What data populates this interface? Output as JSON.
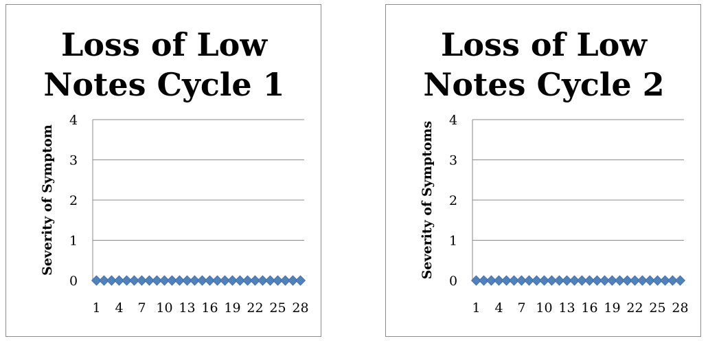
{
  "chart_data": [
    {
      "type": "line",
      "title_lines": [
        "Loss of Low",
        "Notes Cycle 1"
      ],
      "xlabel": "",
      "ylabel": "Severity of Symptom",
      "ylim": [
        0,
        4
      ],
      "yticks": [
        "0",
        "1",
        "2",
        "3",
        "4"
      ],
      "x_tick_labels": [
        "1",
        "4",
        "7",
        "10",
        "13",
        "16",
        "19",
        "22",
        "25",
        "28"
      ],
      "x": [
        1,
        2,
        3,
        4,
        5,
        6,
        7,
        8,
        9,
        10,
        11,
        12,
        13,
        14,
        15,
        16,
        17,
        18,
        19,
        20,
        21,
        22,
        23,
        24,
        25,
        26,
        27,
        28
      ],
      "values": [
        0,
        0,
        0,
        0,
        0,
        0,
        0,
        0,
        0,
        0,
        0,
        0,
        0,
        0,
        0,
        0,
        0,
        0,
        0,
        0,
        0,
        0,
        0,
        0,
        0,
        0,
        0,
        0
      ],
      "grid": true,
      "marker": "diamond",
      "color": "#4f81bd"
    },
    {
      "type": "line",
      "title_lines": [
        "Loss of Low",
        "Notes Cycle 2"
      ],
      "xlabel": "",
      "ylabel": "Severity of Symptoms",
      "ylim": [
        0,
        4
      ],
      "yticks": [
        "0",
        "1",
        "2",
        "3",
        "4"
      ],
      "x_tick_labels": [
        "1",
        "4",
        "7",
        "10",
        "13",
        "16",
        "19",
        "22",
        "25",
        "28"
      ],
      "x": [
        1,
        2,
        3,
        4,
        5,
        6,
        7,
        8,
        9,
        10,
        11,
        12,
        13,
        14,
        15,
        16,
        17,
        18,
        19,
        20,
        21,
        22,
        23,
        24,
        25,
        26,
        27,
        28
      ],
      "values": [
        0,
        0,
        0,
        0,
        0,
        0,
        0,
        0,
        0,
        0,
        0,
        0,
        0,
        0,
        0,
        0,
        0,
        0,
        0,
        0,
        0,
        0,
        0,
        0,
        0,
        0,
        0,
        0
      ],
      "grid": true,
      "marker": "diamond",
      "color": "#4f81bd"
    }
  ]
}
